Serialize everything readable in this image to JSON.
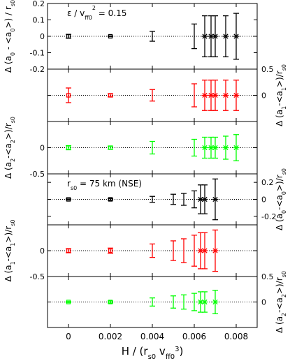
{
  "chart_data": {
    "type": "scatter",
    "x": [
      0,
      0.002,
      0.004,
      0.005,
      0.0055,
      0.006,
      0.0063,
      0.0065,
      0.0068,
      0.007,
      0.0075,
      0.008
    ],
    "xlim": [
      -0.001,
      0.009
    ],
    "xticks": [
      "0",
      "0.002",
      "0.004",
      "0.006",
      "0.008"
    ],
    "xlabel": {
      "main": "H / (r",
      "sub1": "s0",
      "mid": " v",
      "sub2": "ff0",
      "sup": "3",
      "end": ")"
    },
    "grid": false,
    "reference_line": 0,
    "colors": {
      "black": "#000000",
      "red": "#ff0000",
      "green": "#00ff00"
    },
    "panels": [
      {
        "id": "p1",
        "color": "black",
        "ylim": [
          -0.2,
          0.2
        ],
        "axis_side": "left",
        "ticks": [
          [
            "-0.2",
            -0.2
          ],
          [
            "-0.1",
            -0.1
          ],
          [
            "0",
            0
          ],
          [
            "0.1",
            0.1
          ],
          [
            "0.2",
            0.2
          ]
        ],
        "ylabel": {
          "pre": "Δ (a",
          "s1": "0",
          "mid": " - <a",
          "s2": "0",
          "post": ">) / r",
          "s3": "s0"
        },
        "annotation": {
          "a": "ε / v",
          "b": "ff0",
          "c": "2",
          "d": " = 0.15"
        },
        "points": [
          {
            "x": 0,
            "y": 0,
            "err": 0.012,
            "marker": "square"
          },
          {
            "x": 0.002,
            "y": 0,
            "err": 0.002,
            "marker": "square"
          },
          {
            "x": 0.004,
            "y": 0,
            "err": 0.03,
            "marker": "none"
          },
          {
            "x": 0.006,
            "y": 0,
            "err": 0.075,
            "marker": "none"
          },
          {
            "x": 0.0065,
            "y": 0,
            "err": 0.125,
            "marker": "star"
          },
          {
            "x": 0.0068,
            "y": 0,
            "err": 0.125,
            "marker": "star"
          },
          {
            "x": 0.007,
            "y": 0,
            "err": 0.125,
            "marker": "star"
          },
          {
            "x": 0.0075,
            "y": 0,
            "err": 0.125,
            "marker": "star"
          },
          {
            "x": 0.008,
            "y": 0,
            "err": 0.14,
            "marker": "star"
          }
        ]
      },
      {
        "id": "p2",
        "color": "red",
        "ylim": [
          -0.5,
          0.5
        ],
        "axis_side": "right",
        "ticks": [
          [
            "0.5",
            0.5
          ],
          [
            "0",
            0
          ]
        ],
        "ylabel": {
          "pre": "Δ (a",
          "s1": "1",
          "mid": "-<a",
          "s2": "1",
          "post": ">)/r",
          "s3": "s0"
        },
        "points": [
          {
            "x": 0,
            "y": 0,
            "err": 0.14,
            "marker": "square"
          },
          {
            "x": 0.002,
            "y": 0,
            "err": 0.03,
            "marker": "square"
          },
          {
            "x": 0.004,
            "y": 0,
            "err": 0.11,
            "marker": "none"
          },
          {
            "x": 0.006,
            "y": 0,
            "err": 0.22,
            "marker": "none"
          },
          {
            "x": 0.0065,
            "y": 0,
            "err": 0.29,
            "marker": "star"
          },
          {
            "x": 0.0068,
            "y": 0,
            "err": 0.29,
            "marker": "star"
          },
          {
            "x": 0.007,
            "y": 0,
            "err": 0.29,
            "marker": "star"
          },
          {
            "x": 0.0075,
            "y": 0,
            "err": 0.29,
            "marker": "star"
          },
          {
            "x": 0.008,
            "y": 0,
            "err": 0.29,
            "marker": "star"
          }
        ]
      },
      {
        "id": "p3",
        "color": "green",
        "ylim": [
          -0.5,
          0.5
        ],
        "axis_side": "left",
        "ticks": [
          [
            "0",
            0
          ],
          [
            "-0.5",
            -0.5
          ]
        ],
        "ylabel": {
          "pre": "Δ (a",
          "s1": "2",
          "mid": "-<a",
          "s2": "2",
          "post": ">)/r",
          "s3": "s0"
        },
        "points": [
          {
            "x": 0,
            "y": 0,
            "err": 0.04,
            "marker": "square"
          },
          {
            "x": 0.002,
            "y": 0,
            "err": 0.03,
            "marker": "square"
          },
          {
            "x": 0.004,
            "y": 0,
            "err": 0.12,
            "marker": "none"
          },
          {
            "x": 0.006,
            "y": 0,
            "err": 0.16,
            "marker": "none"
          },
          {
            "x": 0.0065,
            "y": 0,
            "err": 0.2,
            "marker": "star"
          },
          {
            "x": 0.0068,
            "y": 0,
            "err": 0.2,
            "marker": "star"
          },
          {
            "x": 0.007,
            "y": 0,
            "err": 0.2,
            "marker": "star"
          },
          {
            "x": 0.0075,
            "y": 0,
            "err": 0.22,
            "marker": "star"
          },
          {
            "x": 0.008,
            "y": 0,
            "err": 0.25,
            "marker": "star"
          }
        ]
      },
      {
        "id": "p4",
        "color": "black",
        "ylim": [
          -0.3,
          0.3
        ],
        "axis_side": "right",
        "ticks": [
          [
            "0.2",
            0.2
          ],
          [
            "0",
            0
          ],
          [
            "-0.2",
            -0.2
          ]
        ],
        "ylabel": {
          "pre": "Δ (a",
          "s1": "0",
          "mid": "-<a",
          "s2": "0",
          "post": ">)/r",
          "s3": "s0"
        },
        "annotation": {
          "a": "r",
          "b": "s0",
          "c": "",
          "d": " = 75 km (NSE)"
        },
        "points": [
          {
            "x": 0,
            "y": 0,
            "err": 0.005,
            "marker": "square"
          },
          {
            "x": 0.002,
            "y": 0,
            "err": 0.01,
            "marker": "square"
          },
          {
            "x": 0.004,
            "y": 0,
            "err": 0.035,
            "marker": "none"
          },
          {
            "x": 0.005,
            "y": 0,
            "err": 0.06,
            "marker": "none"
          },
          {
            "x": 0.0055,
            "y": 0,
            "err": 0.07,
            "marker": "none"
          },
          {
            "x": 0.006,
            "y": 0,
            "err": 0.1,
            "marker": "none"
          },
          {
            "x": 0.0063,
            "y": 0,
            "err": 0.17,
            "marker": "star"
          },
          {
            "x": 0.0065,
            "y": 0,
            "err": 0.17,
            "marker": "star"
          },
          {
            "x": 0.007,
            "y": 0,
            "err": 0.24,
            "marker": "star"
          }
        ]
      },
      {
        "id": "p5",
        "color": "red",
        "ylim": [
          -0.5,
          0.5
        ],
        "axis_side": "left",
        "ticks": [
          [
            "0",
            0
          ],
          [
            "-0.5",
            -0.5
          ]
        ],
        "ylabel": {
          "pre": "Δ (a",
          "s1": "1",
          "mid": "-<a",
          "s2": "1",
          "post": ">)/r",
          "s3": "s0"
        },
        "points": [
          {
            "x": 0,
            "y": 0,
            "err": 0.04,
            "marker": "square"
          },
          {
            "x": 0.002,
            "y": 0,
            "err": 0.05,
            "marker": "square"
          },
          {
            "x": 0.004,
            "y": 0,
            "err": 0.13,
            "marker": "none"
          },
          {
            "x": 0.005,
            "y": 0,
            "err": 0.19,
            "marker": "none"
          },
          {
            "x": 0.0055,
            "y": 0,
            "err": 0.23,
            "marker": "none"
          },
          {
            "x": 0.006,
            "y": 0,
            "err": 0.3,
            "marker": "none"
          },
          {
            "x": 0.0063,
            "y": 0,
            "err": 0.35,
            "marker": "star"
          },
          {
            "x": 0.0065,
            "y": 0,
            "err": 0.35,
            "marker": "star"
          },
          {
            "x": 0.007,
            "y": 0,
            "err": 0.4,
            "marker": "star"
          }
        ]
      },
      {
        "id": "p6",
        "color": "green",
        "ylim": [
          -0.5,
          0.5
        ],
        "axis_side": "right",
        "ticks": [
          [
            "0.5",
            0.5
          ],
          [
            "0",
            0
          ]
        ],
        "ylabel": {
          "pre": "Δ (a",
          "s1": "2",
          "mid": "-<a",
          "s2": "2",
          "post": ">)/r",
          "s3": "s0"
        },
        "points": [
          {
            "x": 0,
            "y": 0,
            "err": 0.01,
            "marker": "square"
          },
          {
            "x": 0.002,
            "y": 0,
            "err": 0.02,
            "marker": "square"
          },
          {
            "x": 0.004,
            "y": 0,
            "err": 0.08,
            "marker": "none"
          },
          {
            "x": 0.005,
            "y": 0,
            "err": 0.12,
            "marker": "none"
          },
          {
            "x": 0.0055,
            "y": 0,
            "err": 0.14,
            "marker": "none"
          },
          {
            "x": 0.006,
            "y": 0,
            "err": 0.17,
            "marker": "none"
          },
          {
            "x": 0.0063,
            "y": 0,
            "err": 0.2,
            "marker": "star"
          },
          {
            "x": 0.0065,
            "y": 0,
            "err": 0.2,
            "marker": "star"
          },
          {
            "x": 0.007,
            "y": 0,
            "err": 0.23,
            "marker": "star"
          }
        ]
      }
    ]
  }
}
